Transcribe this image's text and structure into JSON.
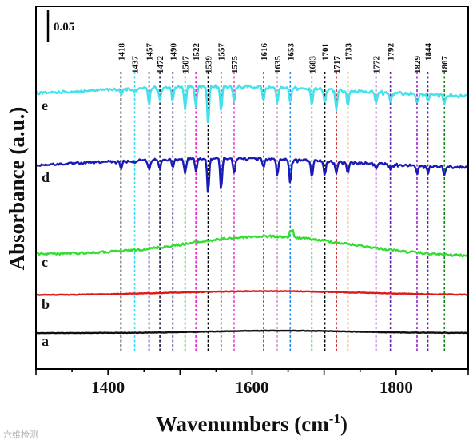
{
  "chart_data": {
    "type": "line",
    "xlabel": "Wavenumbers (cm",
    "xlabel_sup": "-1",
    "xlabel_end": ")",
    "ylabel": "Absorbance (a.u.)",
    "xlim": [
      1300,
      1900
    ],
    "xticks": [
      1400,
      1600,
      1800
    ],
    "scale_bar_label": "0.05",
    "peaks": [
      {
        "wavenumber": 1418,
        "label": "1418",
        "color": "#000000"
      },
      {
        "wavenumber": 1437,
        "label": "1437",
        "color": "#33ddee"
      },
      {
        "wavenumber": 1457,
        "label": "1457",
        "color": "#0a1fa8"
      },
      {
        "wavenumber": 1472,
        "label": "1472",
        "color": "#1a1a3a"
      },
      {
        "wavenumber": 1490,
        "label": "1490",
        "color": "#101060"
      },
      {
        "wavenumber": 1507,
        "label": "1507",
        "color": "#22bb22"
      },
      {
        "wavenumber": 1522,
        "label": "1522",
        "color": "#ee22cc"
      },
      {
        "wavenumber": 1539,
        "label": "1539",
        "color": "#000000"
      },
      {
        "wavenumber": 1557,
        "label": "1557",
        "color": "#dd2222"
      },
      {
        "wavenumber": 1575,
        "label": "1575",
        "color": "#ee44cc"
      },
      {
        "wavenumber": 1616,
        "label": "1616",
        "color": "#6b6b10"
      },
      {
        "wavenumber": 1635,
        "label": "1635",
        "color": "#cc99cc"
      },
      {
        "wavenumber": 1653,
        "label": "1653",
        "color": "#2288ee"
      },
      {
        "wavenumber": 1683,
        "label": "1683",
        "color": "#22aa22"
      },
      {
        "wavenumber": 1701,
        "label": "1701",
        "color": "#000000"
      },
      {
        "wavenumber": 1717,
        "label": "1717",
        "color": "#bb1111"
      },
      {
        "wavenumber": 1733,
        "label": "1733",
        "color": "#ee8822"
      },
      {
        "wavenumber": 1772,
        "label": "1772",
        "color": "#9922cc"
      },
      {
        "wavenumber": 1792,
        "label": "1792",
        "color": "#6622aa"
      },
      {
        "wavenumber": 1829,
        "label": "1829",
        "color": "#9922cc"
      },
      {
        "wavenumber": 1844,
        "label": "1844",
        "color": "#6622aa"
      },
      {
        "wavenumber": 1867,
        "label": "1867",
        "color": "#118811"
      }
    ],
    "series": [
      {
        "name": "a",
        "color": "#111111",
        "shape": "flat",
        "noise": 0.3,
        "baseline": 417
      },
      {
        "name": "b",
        "color": "#dd1a1a",
        "shape": "bump",
        "noise": 0.4,
        "baseline": 371
      },
      {
        "name": "c",
        "color": "#33dd33",
        "shape": "broad",
        "noise": 1.4,
        "baseline": 318
      },
      {
        "name": "d",
        "color": "#1a1ab8",
        "shape": "peaks",
        "noise": 1.2,
        "baseline": 212
      },
      {
        "name": "e",
        "color": "#44e0ec",
        "shape": "peaks",
        "noise": 1.6,
        "baseline": 122
      }
    ]
  },
  "watermark": "六维检测"
}
